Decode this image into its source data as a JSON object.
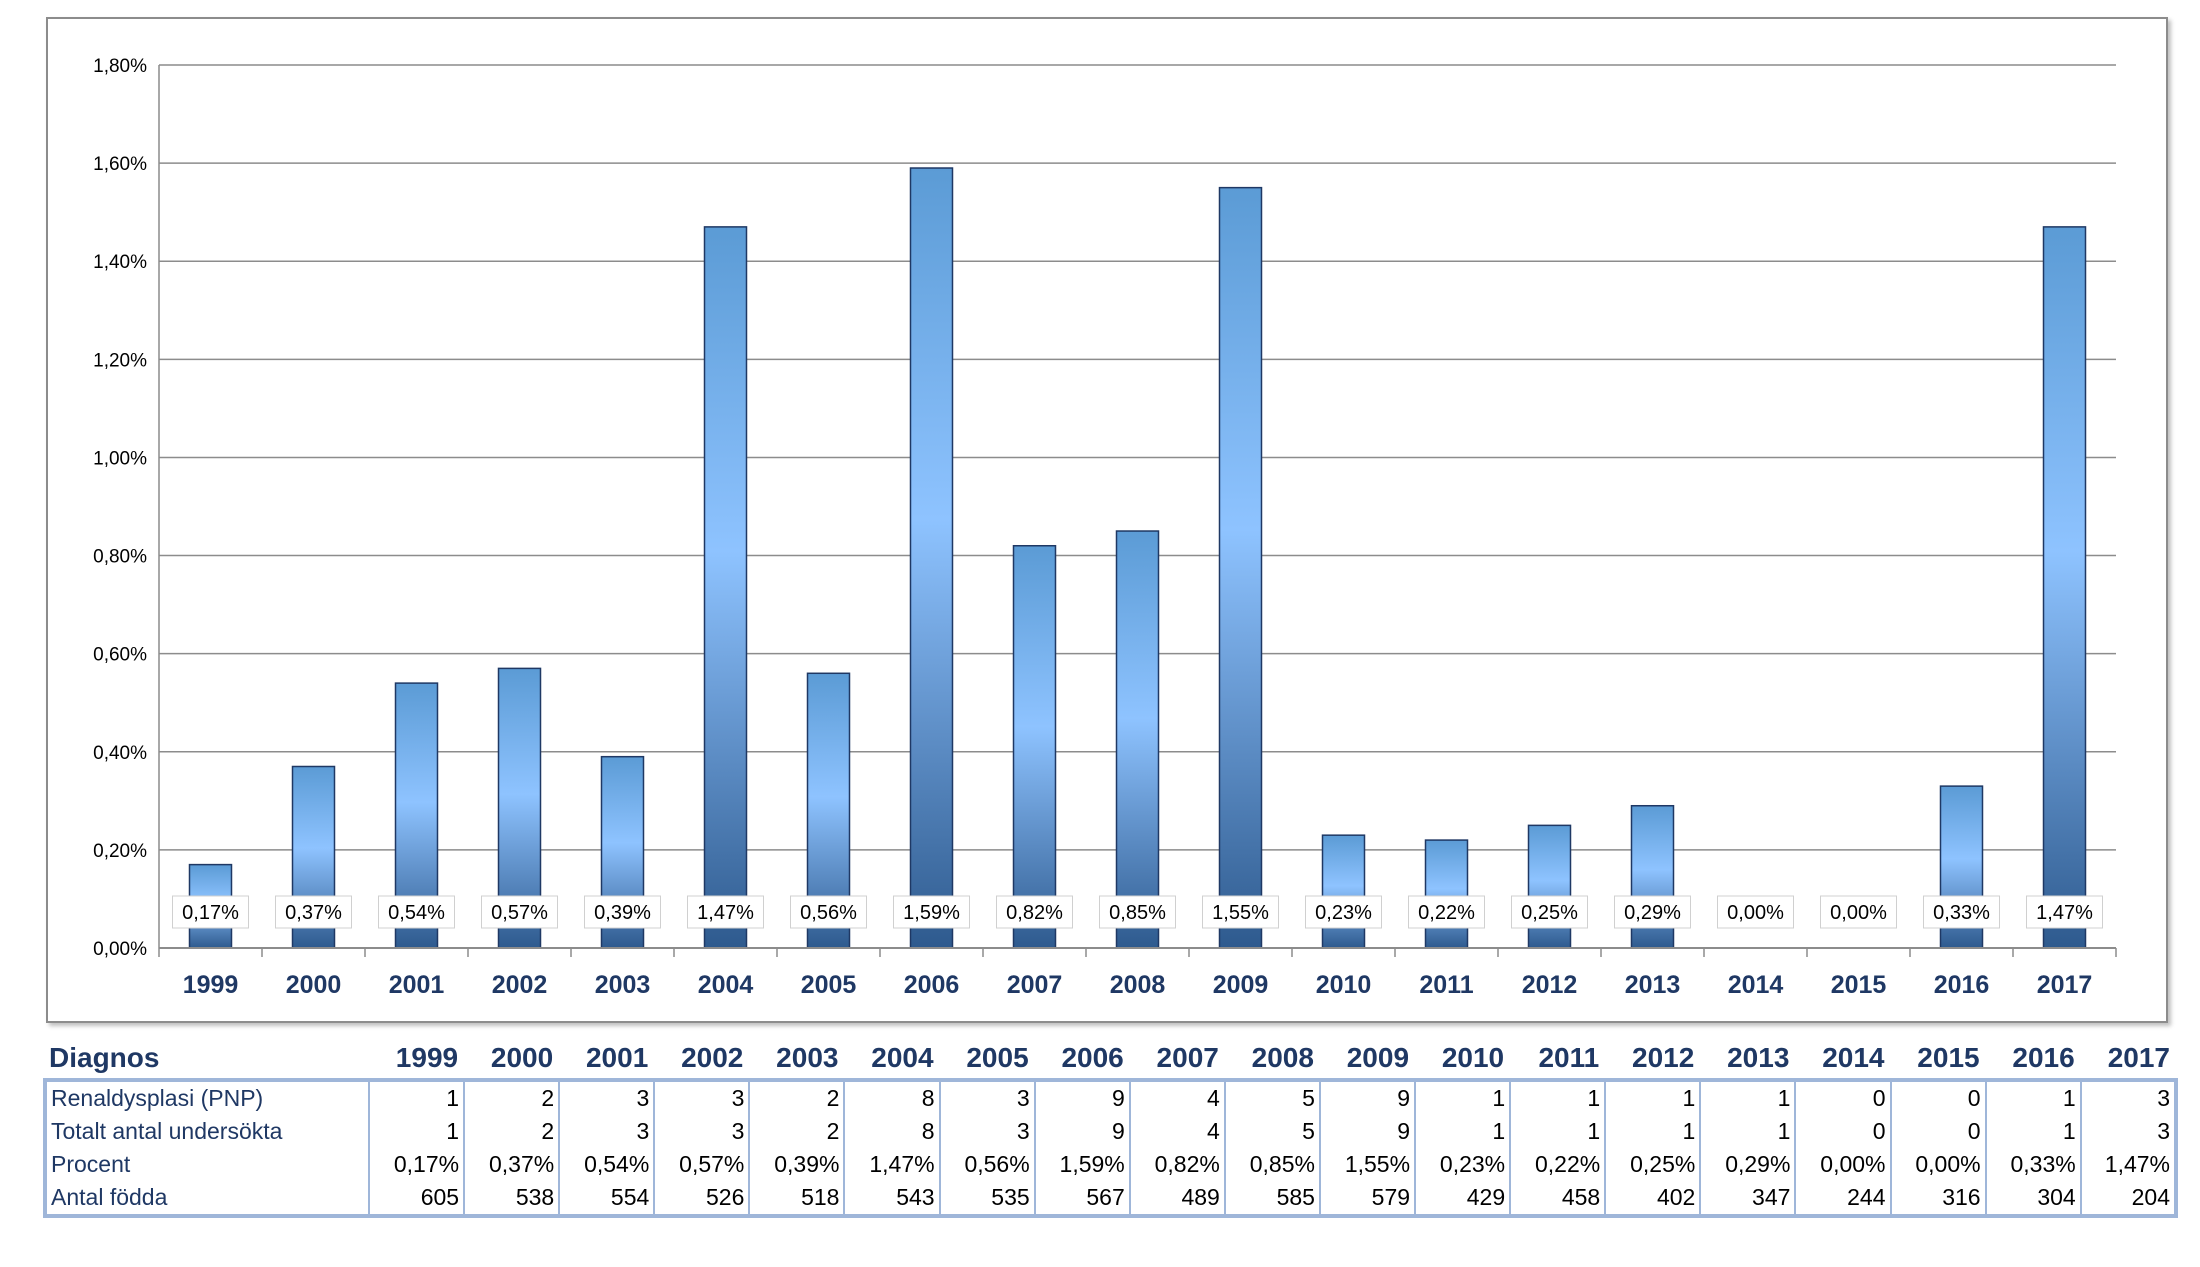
{
  "chart_data": {
    "type": "bar",
    "categories": [
      "1999",
      "2000",
      "2001",
      "2002",
      "2003",
      "2004",
      "2005",
      "2006",
      "2007",
      "2008",
      "2009",
      "2010",
      "2011",
      "2012",
      "2013",
      "2014",
      "2015",
      "2016",
      "2017"
    ],
    "values": [
      0.17,
      0.37,
      0.54,
      0.57,
      0.39,
      1.47,
      0.56,
      1.59,
      0.82,
      0.85,
      1.55,
      0.23,
      0.22,
      0.25,
      0.29,
      0.0,
      0.0,
      0.33,
      1.47
    ],
    "data_labels": [
      "0,17%",
      "0,37%",
      "0,54%",
      "0,57%",
      "0,39%",
      "1,47%",
      "0,56%",
      "1,59%",
      "0,82%",
      "0,85%",
      "1,55%",
      "0,23%",
      "0,22%",
      "0,25%",
      "0,29%",
      "0,00%",
      "0,00%",
      "0,33%",
      "1,47%"
    ],
    "ylim": [
      0,
      1.8
    ],
    "yticks": [
      0,
      0.2,
      0.4,
      0.6,
      0.8,
      1.0,
      1.2,
      1.4,
      1.6,
      1.8
    ],
    "ytick_labels": [
      "0,00%",
      "0,20%",
      "0,40%",
      "0,60%",
      "0,80%",
      "1,00%",
      "1,20%",
      "1,40%",
      "1,60%",
      "1,80%"
    ],
    "grid": true,
    "colors": {
      "bar_light": "#8ec3ff",
      "bar_mid": "#5b9bd5",
      "bar_dark": "#2e5a8e",
      "grid": "#8c8c8c",
      "axis_label": "#1f3864"
    }
  },
  "table": {
    "header_label": "Diagnos",
    "years": [
      "1999",
      "2000",
      "2001",
      "2002",
      "2003",
      "2004",
      "2005",
      "2006",
      "2007",
      "2008",
      "2009",
      "2010",
      "2011",
      "2012",
      "2013",
      "2014",
      "2015",
      "2016",
      "2017"
    ],
    "rows": [
      {
        "label": "Renaldysplasi (PNP)",
        "values": [
          "1",
          "2",
          "3",
          "3",
          "2",
          "8",
          "3",
          "9",
          "4",
          "5",
          "9",
          "1",
          "1",
          "1",
          "1",
          "0",
          "0",
          "1",
          "3"
        ]
      },
      {
        "label": "Totalt antal undersökta",
        "values": [
          "1",
          "2",
          "3",
          "3",
          "2",
          "8",
          "3",
          "9",
          "4",
          "5",
          "9",
          "1",
          "1",
          "1",
          "1",
          "0",
          "0",
          "1",
          "3"
        ]
      },
      {
        "label": "Procent",
        "values": [
          "0,17%",
          "0,37%",
          "0,54%",
          "0,57%",
          "0,39%",
          "1,47%",
          "0,56%",
          "1,59%",
          "0,82%",
          "0,85%",
          "1,55%",
          "0,23%",
          "0,22%",
          "0,25%",
          "0,29%",
          "0,00%",
          "0,00%",
          "0,33%",
          "1,47%"
        ]
      },
      {
        "label": "Antal födda",
        "values": [
          "605",
          "538",
          "554",
          "526",
          "518",
          "543",
          "535",
          "567",
          "489",
          "585",
          "579",
          "429",
          "458",
          "402",
          "347",
          "244",
          "316",
          "304",
          "204"
        ]
      }
    ]
  }
}
